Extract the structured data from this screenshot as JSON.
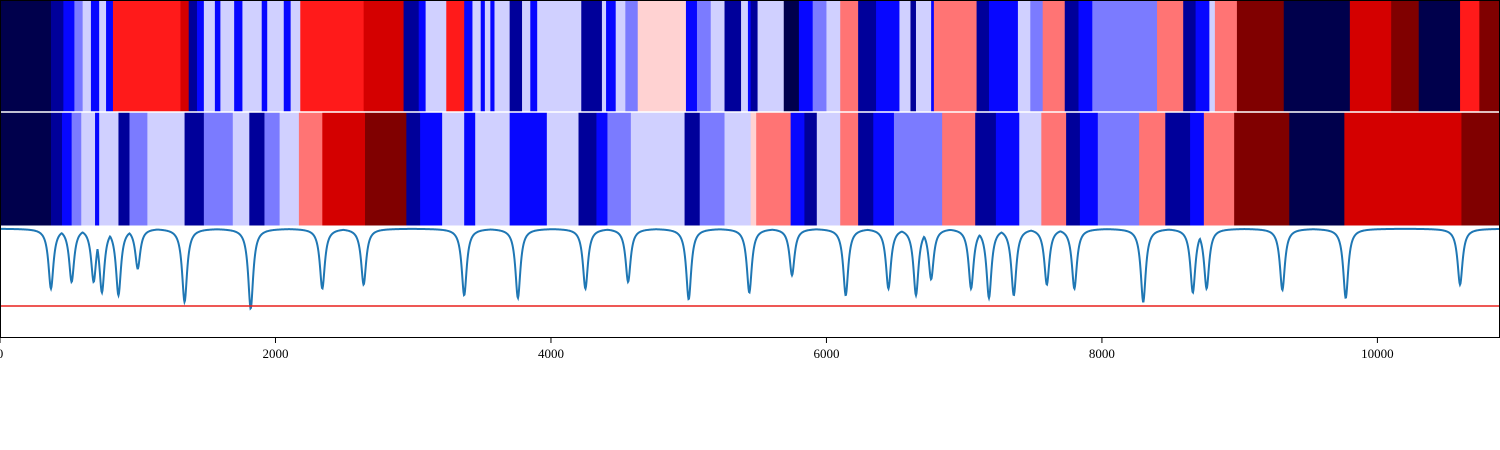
{
  "chart_data": [
    {
      "type": "heatmap",
      "panel": "top",
      "x_range": [
        0,
        10890
      ],
      "legend": "none",
      "segments": [
        {
          "start": 0,
          "end": 370,
          "level": -5
        },
        {
          "start": 370,
          "end": 460,
          "level": -4
        },
        {
          "start": 460,
          "end": 540,
          "level": -3
        },
        {
          "start": 540,
          "end": 600,
          "level": -2
        },
        {
          "start": 600,
          "end": 660,
          "level": -1
        },
        {
          "start": 660,
          "end": 720,
          "level": -3
        },
        {
          "start": 720,
          "end": 770,
          "level": -1
        },
        {
          "start": 770,
          "end": 820,
          "level": -3
        },
        {
          "start": 820,
          "end": 1310,
          "level": 3
        },
        {
          "start": 1310,
          "end": 1370,
          "level": 4
        },
        {
          "start": 1370,
          "end": 1430,
          "level": -4
        },
        {
          "start": 1430,
          "end": 1480,
          "level": -3
        },
        {
          "start": 1480,
          "end": 1560,
          "level": -1
        },
        {
          "start": 1560,
          "end": 1600,
          "level": -3
        },
        {
          "start": 1600,
          "end": 1700,
          "level": -1
        },
        {
          "start": 1700,
          "end": 1760,
          "level": -3
        },
        {
          "start": 1760,
          "end": 1900,
          "level": -1
        },
        {
          "start": 1900,
          "end": 1940,
          "level": -3
        },
        {
          "start": 1940,
          "end": 2060,
          "level": -1
        },
        {
          "start": 2060,
          "end": 2110,
          "level": -3
        },
        {
          "start": 2110,
          "end": 2180,
          "level": -1
        },
        {
          "start": 2180,
          "end": 2640,
          "level": 3
        },
        {
          "start": 2640,
          "end": 2930,
          "level": 4
        },
        {
          "start": 2930,
          "end": 3040,
          "level": -4
        },
        {
          "start": 3040,
          "end": 3090,
          "level": -3
        },
        {
          "start": 3090,
          "end": 3240,
          "level": -1
        },
        {
          "start": 3240,
          "end": 3370,
          "level": 3
        },
        {
          "start": 3370,
          "end": 3430,
          "level": -3
        },
        {
          "start": 3430,
          "end": 3490,
          "level": -1
        },
        {
          "start": 3490,
          "end": 3520,
          "level": -3
        },
        {
          "start": 3520,
          "end": 3560,
          "level": -1
        },
        {
          "start": 3560,
          "end": 3590,
          "level": -3
        },
        {
          "start": 3590,
          "end": 3700,
          "level": -1
        },
        {
          "start": 3700,
          "end": 3790,
          "level": -4
        },
        {
          "start": 3790,
          "end": 3850,
          "level": -1
        },
        {
          "start": 3850,
          "end": 3900,
          "level": -3
        },
        {
          "start": 3900,
          "end": 4220,
          "level": -1
        },
        {
          "start": 4220,
          "end": 4370,
          "level": -4
        },
        {
          "start": 4370,
          "end": 4400,
          "level": -1
        },
        {
          "start": 4400,
          "end": 4470,
          "level": -3
        },
        {
          "start": 4470,
          "end": 4540,
          "level": -1
        },
        {
          "start": 4540,
          "end": 4630,
          "level": -2
        },
        {
          "start": 4630,
          "end": 4980,
          "level": 1
        },
        {
          "start": 4980,
          "end": 5060,
          "level": -3
        },
        {
          "start": 5060,
          "end": 5160,
          "level": -2
        },
        {
          "start": 5160,
          "end": 5260,
          "level": -1
        },
        {
          "start": 5260,
          "end": 5380,
          "level": -4
        },
        {
          "start": 5380,
          "end": 5430,
          "level": -1
        },
        {
          "start": 5430,
          "end": 5450,
          "level": -3
        },
        {
          "start": 5450,
          "end": 5500,
          "level": -4
        },
        {
          "start": 5500,
          "end": 5690,
          "level": -1
        },
        {
          "start": 5690,
          "end": 5800,
          "level": -5
        },
        {
          "start": 5800,
          "end": 5900,
          "level": -3
        },
        {
          "start": 5900,
          "end": 6000,
          "level": -2
        },
        {
          "start": 6000,
          "end": 6100,
          "level": -1
        },
        {
          "start": 6100,
          "end": 6230,
          "level": 2
        },
        {
          "start": 6230,
          "end": 6360,
          "level": -4
        },
        {
          "start": 6360,
          "end": 6530,
          "level": -3
        },
        {
          "start": 6530,
          "end": 6610,
          "level": -1
        },
        {
          "start": 6610,
          "end": 6650,
          "level": -4
        },
        {
          "start": 6650,
          "end": 6760,
          "level": -1
        },
        {
          "start": 6760,
          "end": 6780,
          "level": -3
        },
        {
          "start": 6780,
          "end": 7090,
          "level": 2
        },
        {
          "start": 7090,
          "end": 7180,
          "level": -4
        },
        {
          "start": 7180,
          "end": 7390,
          "level": -3
        },
        {
          "start": 7390,
          "end": 7480,
          "level": -1
        },
        {
          "start": 7480,
          "end": 7570,
          "level": -2
        },
        {
          "start": 7570,
          "end": 7730,
          "level": 2
        },
        {
          "start": 7730,
          "end": 7830,
          "level": -4
        },
        {
          "start": 7830,
          "end": 7930,
          "level": -3
        },
        {
          "start": 7930,
          "end": 8400,
          "level": -2
        },
        {
          "start": 8400,
          "end": 8590,
          "level": 2
        },
        {
          "start": 8590,
          "end": 8680,
          "level": -4
        },
        {
          "start": 8680,
          "end": 8780,
          "level": -3
        },
        {
          "start": 8780,
          "end": 8820,
          "level": -1
        },
        {
          "start": 8820,
          "end": 8980,
          "level": 2
        },
        {
          "start": 8980,
          "end": 9320,
          "level": 5
        },
        {
          "start": 9320,
          "end": 9800,
          "level": -5
        },
        {
          "start": 9800,
          "end": 10100,
          "level": 4
        },
        {
          "start": 10100,
          "end": 10300,
          "level": 5
        },
        {
          "start": 10300,
          "end": 10600,
          "level": -5
        },
        {
          "start": 10600,
          "end": 10740,
          "level": 3
        },
        {
          "start": 10740,
          "end": 10890,
          "level": 5
        }
      ]
    },
    {
      "type": "heatmap",
      "panel": "middle",
      "x_range": [
        0,
        10890
      ],
      "legend": "none",
      "segments": [
        {
          "start": 0,
          "end": 370,
          "level": -5
        },
        {
          "start": 370,
          "end": 450,
          "level": -4
        },
        {
          "start": 450,
          "end": 520,
          "level": -3
        },
        {
          "start": 520,
          "end": 590,
          "level": -2
        },
        {
          "start": 590,
          "end": 690,
          "level": -1
        },
        {
          "start": 690,
          "end": 720,
          "level": -3
        },
        {
          "start": 720,
          "end": 860,
          "level": -1
        },
        {
          "start": 860,
          "end": 940,
          "level": -4
        },
        {
          "start": 940,
          "end": 1070,
          "level": -2
        },
        {
          "start": 1070,
          "end": 1340,
          "level": -1
        },
        {
          "start": 1340,
          "end": 1480,
          "level": -4
        },
        {
          "start": 1480,
          "end": 1690,
          "level": -2
        },
        {
          "start": 1690,
          "end": 1810,
          "level": -1
        },
        {
          "start": 1810,
          "end": 1920,
          "level": -4
        },
        {
          "start": 1920,
          "end": 2030,
          "level": -2
        },
        {
          "start": 2030,
          "end": 2170,
          "level": -1
        },
        {
          "start": 2170,
          "end": 2340,
          "level": 2
        },
        {
          "start": 2340,
          "end": 2650,
          "level": 4
        },
        {
          "start": 2650,
          "end": 2950,
          "level": 5
        },
        {
          "start": 2950,
          "end": 3050,
          "level": -4
        },
        {
          "start": 3050,
          "end": 3210,
          "level": -3
        },
        {
          "start": 3210,
          "end": 3370,
          "level": -1
        },
        {
          "start": 3370,
          "end": 3450,
          "level": -3
        },
        {
          "start": 3450,
          "end": 3700,
          "level": -1
        },
        {
          "start": 3700,
          "end": 3970,
          "level": -3
        },
        {
          "start": 3970,
          "end": 4200,
          "level": -1
        },
        {
          "start": 4200,
          "end": 4330,
          "level": -4
        },
        {
          "start": 4330,
          "end": 4410,
          "level": -3
        },
        {
          "start": 4410,
          "end": 4580,
          "level": -2
        },
        {
          "start": 4580,
          "end": 4970,
          "level": -1
        },
        {
          "start": 4970,
          "end": 5080,
          "level": -4
        },
        {
          "start": 5080,
          "end": 5260,
          "level": -2
        },
        {
          "start": 5260,
          "end": 5450,
          "level": -1
        },
        {
          "start": 5450,
          "end": 5490,
          "level": 1
        },
        {
          "start": 5490,
          "end": 5740,
          "level": 2
        },
        {
          "start": 5740,
          "end": 5840,
          "level": -3
        },
        {
          "start": 5840,
          "end": 5930,
          "level": -4
        },
        {
          "start": 5930,
          "end": 6100,
          "level": -1
        },
        {
          "start": 6100,
          "end": 6230,
          "level": 2
        },
        {
          "start": 6230,
          "end": 6340,
          "level": -4
        },
        {
          "start": 6340,
          "end": 6490,
          "level": -3
        },
        {
          "start": 6490,
          "end": 6840,
          "level": -2
        },
        {
          "start": 6840,
          "end": 7080,
          "level": 2
        },
        {
          "start": 7080,
          "end": 7230,
          "level": -4
        },
        {
          "start": 7230,
          "end": 7400,
          "level": -3
        },
        {
          "start": 7400,
          "end": 7560,
          "level": -1
        },
        {
          "start": 7560,
          "end": 7740,
          "level": 2
        },
        {
          "start": 7740,
          "end": 7840,
          "level": -4
        },
        {
          "start": 7840,
          "end": 7970,
          "level": -3
        },
        {
          "start": 7970,
          "end": 8270,
          "level": -2
        },
        {
          "start": 8270,
          "end": 8460,
          "level": 2
        },
        {
          "start": 8460,
          "end": 8640,
          "level": -4
        },
        {
          "start": 8640,
          "end": 8740,
          "level": -3
        },
        {
          "start": 8740,
          "end": 8960,
          "level": 2
        },
        {
          "start": 8960,
          "end": 9360,
          "level": 5
        },
        {
          "start": 9360,
          "end": 9760,
          "level": -5
        },
        {
          "start": 9760,
          "end": 10610,
          "level": 4
        },
        {
          "start": 10610,
          "end": 10890,
          "level": 5
        }
      ]
    },
    {
      "type": "line",
      "panel": "bottom",
      "x": [
        0,
        370,
        520,
        680,
        740,
        860,
        1000,
        1340,
        1820,
        2340,
        2640,
        3370,
        3760,
        4250,
        4560,
        5000,
        5440,
        5750,
        6140,
        6450,
        6650,
        6760,
        7050,
        7180,
        7360,
        7600,
        7800,
        8300,
        8660,
        8760,
        9310,
        9770,
        10600,
        10890
      ],
      "series": [
        {
          "color": "#1f77b4",
          "values": [
            0.0,
            -0.45,
            -0.4,
            -0.4,
            -0.48,
            -0.5,
            -0.3,
            -0.55,
            -0.6,
            -0.45,
            -0.42,
            -0.5,
            -0.52,
            -0.45,
            -0.4,
            -0.53,
            -0.48,
            -0.35,
            -0.5,
            -0.45,
            -0.5,
            -0.38,
            -0.45,
            -0.52,
            -0.5,
            -0.42,
            -0.45,
            -0.55,
            -0.48,
            -0.45,
            -0.46,
            -0.52,
            -0.42,
            0.0
          ]
        }
      ],
      "threshold": {
        "value": -0.58,
        "color": "#e8211d"
      },
      "xlim": [
        0,
        10890
      ],
      "ylim": [
        -0.82,
        0.02
      ],
      "xticks": [
        "0",
        "2000",
        "4000",
        "6000",
        "8000",
        "10000"
      ],
      "xtick_values": [
        0,
        2000,
        4000,
        6000,
        8000,
        10000
      ],
      "xlabel": "",
      "ylabel": ""
    }
  ],
  "palette": {
    "-5": "#00004c",
    "-4": "#00009a",
    "-3": "#0707ff",
    "-2": "#7b7bff",
    "-1": "#d0d0ff",
    "1": "#ffd2d2",
    "2": "#ff7474",
    "3": "#ff1a1a",
    "4": "#d40000",
    "5": "#800000"
  }
}
